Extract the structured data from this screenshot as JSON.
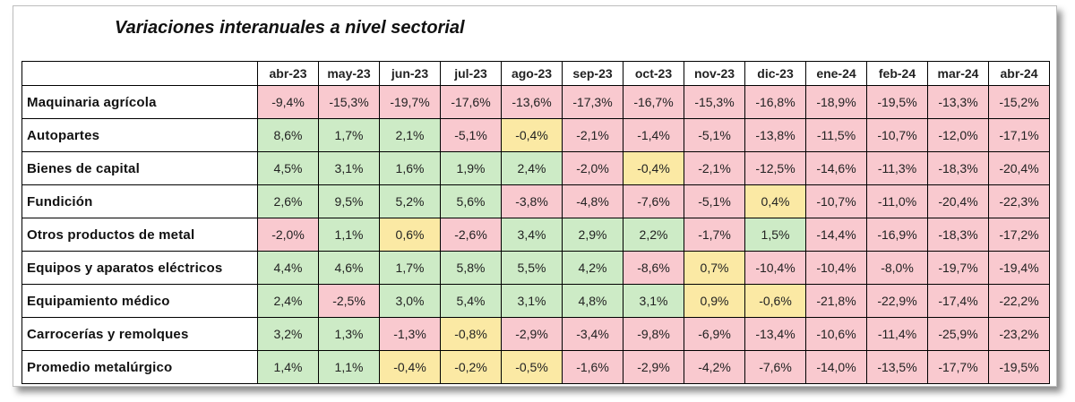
{
  "chart_data": {
    "type": "table",
    "title": "Variaciones interanuales a nivel sectorial",
    "columns": [
      "abr-23",
      "may-23",
      "jun-23",
      "jul-23",
      "ago-23",
      "sep-23",
      "oct-23",
      "nov-23",
      "dic-23",
      "ene-24",
      "feb-24",
      "mar-24",
      "abr-24"
    ],
    "rows": [
      {
        "label": "Maquinaria agrícola",
        "cells": [
          "-9,4%",
          "-15,3%",
          "-19,7%",
          "-17,6%",
          "-13,6%",
          "-17,3%",
          "-16,7%",
          "-15,3%",
          "-16,8%",
          "-18,9%",
          "-19,5%",
          "-13,3%",
          "-15,2%"
        ],
        "values": [
          -9.4,
          -15.3,
          -19.7,
          -17.6,
          -13.6,
          -17.3,
          -16.7,
          -15.3,
          -16.8,
          -18.9,
          -19.5,
          -13.3,
          -15.2
        ]
      },
      {
        "label": "Autopartes",
        "cells": [
          "8,6%",
          "1,7%",
          "2,1%",
          "-5,1%",
          "-0,4%",
          "-2,1%",
          "-1,4%",
          "-5,1%",
          "-13,8%",
          "-11,5%",
          "-10,7%",
          "-12,0%",
          "-17,1%"
        ],
        "values": [
          8.6,
          1.7,
          2.1,
          -5.1,
          -0.4,
          -2.1,
          -1.4,
          -5.1,
          -13.8,
          -11.5,
          -10.7,
          -12.0,
          -17.1
        ]
      },
      {
        "label": "Bienes de capital",
        "cells": [
          "4,5%",
          "3,1%",
          "1,6%",
          "1,9%",
          "2,4%",
          "-2,0%",
          "-0,4%",
          "-2,1%",
          "-12,5%",
          "-14,6%",
          "-11,3%",
          "-18,3%",
          "-20,4%"
        ],
        "values": [
          4.5,
          3.1,
          1.6,
          1.9,
          2.4,
          -2.0,
          -0.4,
          -2.1,
          -12.5,
          -14.6,
          -11.3,
          -18.3,
          -20.4
        ]
      },
      {
        "label": "Fundición",
        "cells": [
          "2,6%",
          "9,5%",
          "5,2%",
          "5,6%",
          "-3,8%",
          "-4,8%",
          "-7,6%",
          "-5,1%",
          "0,4%",
          "-10,7%",
          "-11,0%",
          "-20,4%",
          "-22,3%"
        ],
        "values": [
          2.6,
          9.5,
          5.2,
          5.6,
          -3.8,
          -4.8,
          -7.6,
          -5.1,
          0.4,
          -10.7,
          -11.0,
          -20.4,
          -22.3
        ]
      },
      {
        "label": "Otros productos de metal",
        "cells": [
          "-2,0%",
          "1,1%",
          "0,6%",
          "-2,6%",
          "3,4%",
          "2,9%",
          "2,2%",
          "-1,7%",
          "1,5%",
          "-14,4%",
          "-16,9%",
          "-18,3%",
          "-17,2%"
        ],
        "values": [
          -2.0,
          1.1,
          0.6,
          -2.6,
          3.4,
          2.9,
          2.2,
          -1.7,
          1.5,
          -14.4,
          -16.9,
          -18.3,
          -17.2
        ]
      },
      {
        "label": "Equipos y aparatos eléctricos",
        "cells": [
          "4,4%",
          "4,6%",
          "1,7%",
          "5,8%",
          "5,5%",
          "4,2%",
          "-8,6%",
          "0,7%",
          "-10,4%",
          "-10,4%",
          "-8,0%",
          "-19,7%",
          "-19,4%"
        ],
        "values": [
          4.4,
          4.6,
          1.7,
          5.8,
          5.5,
          4.2,
          -8.6,
          0.7,
          -10.4,
          -10.4,
          -8.0,
          -19.7,
          -19.4
        ]
      },
      {
        "label": "Equipamiento médico",
        "cells": [
          "2,4%",
          "-2,5%",
          "3,0%",
          "5,4%",
          "3,1%",
          "4,8%",
          "3,1%",
          "0,9%",
          "-0,6%",
          "-21,8%",
          "-22,9%",
          "-17,4%",
          "-22,2%"
        ],
        "values": [
          2.4,
          -2.5,
          3.0,
          5.4,
          3.1,
          4.8,
          3.1,
          0.9,
          -0.6,
          -21.8,
          -22.9,
          -17.4,
          -22.2
        ]
      },
      {
        "label": "Carrocerías y remolques",
        "cells": [
          "3,2%",
          "1,3%",
          "-1,3%",
          "-0,8%",
          "-2,9%",
          "-3,4%",
          "-9,8%",
          "-6,9%",
          "-13,4%",
          "-10,6%",
          "-11,4%",
          "-25,9%",
          "-23,2%"
        ],
        "values": [
          3.2,
          1.3,
          -1.3,
          -0.8,
          -2.9,
          -3.4,
          -9.8,
          -6.9,
          -13.4,
          -10.6,
          -11.4,
          -25.9,
          -23.2
        ]
      },
      {
        "label": "Promedio metalúrgico",
        "cells": [
          "1,4%",
          "1,1%",
          "-0,4%",
          "-0,2%",
          "-0,5%",
          "-1,6%",
          "-2,9%",
          "-4,2%",
          "-7,6%",
          "-14,0%",
          "-13,5%",
          "-17,7%",
          "-19,5%"
        ],
        "values": [
          1.4,
          1.1,
          -0.4,
          -0.2,
          -0.5,
          -1.6,
          -2.9,
          -4.2,
          -7.6,
          -14.0,
          -13.5,
          -17.7,
          -19.5
        ]
      }
    ],
    "colors": {
      "negative": "#f9c9cf",
      "positive": "#cdebc6",
      "near_zero": "#fbe9a4"
    }
  }
}
